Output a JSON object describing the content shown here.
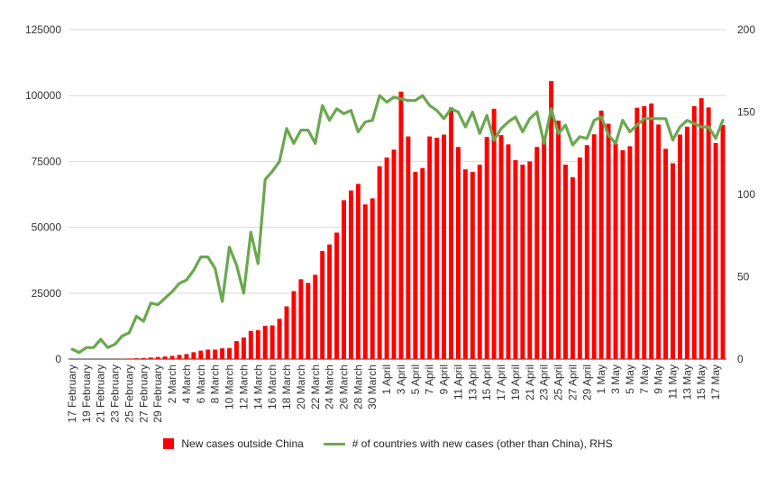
{
  "chart_data": {
    "type": "bar+line",
    "x": [
      "17 February",
      "18 February",
      "19 February",
      "20 February",
      "21 February",
      "22 February",
      "23 February",
      "24 February",
      "25 February",
      "26 February",
      "27 February",
      "28 February",
      "29 February",
      "1 March",
      "2 March",
      "3 March",
      "4 March",
      "5 March",
      "6 March",
      "7 March",
      "8 March",
      "9 March",
      "10 March",
      "11 March",
      "12 March",
      "13 March",
      "14 March",
      "15 March",
      "16 March",
      "17 March",
      "18 March",
      "19 March",
      "20 March",
      "21 March",
      "22 March",
      "23 March",
      "24 March",
      "25 March",
      "26 March",
      "27 March",
      "28 March",
      "29 March",
      "30 March",
      "31 March",
      "1 April",
      "2 April",
      "3 April",
      "4 April",
      "5 April",
      "6 April",
      "7 April",
      "8 April",
      "9 April",
      "10 April",
      "11 April",
      "12 April",
      "13 April",
      "14 April",
      "15 April",
      "16 April",
      "17 April",
      "18 April",
      "19 April",
      "20 April",
      "21 April",
      "22 April",
      "23 April",
      "24 April",
      "25 April",
      "26 April",
      "27 April",
      "28 April",
      "29 April",
      "30 April",
      "1 May",
      "2 May",
      "3 May",
      "4 May",
      "5 May",
      "6 May",
      "7 May",
      "8 May",
      "9 May",
      "10 May",
      "11 May",
      "12 May",
      "13 May",
      "14 May",
      "15 May",
      "16 May",
      "17 May",
      "18 May"
    ],
    "x_tick_labels": [
      "17 February",
      "19 February",
      "21 February",
      "23 February",
      "25 February",
      "27 February",
      "29 February",
      "2 March",
      "4 March",
      "6 March",
      "8 March",
      "10 March",
      "12 March",
      "14 March",
      "16 March",
      "18 March",
      "20 March",
      "22 March",
      "24 March",
      "26 March",
      "28 March",
      "30 March",
      "1 April",
      "3 April",
      "5 April",
      "7 April",
      "9 April",
      "11 April",
      "13 April",
      "15 April",
      "17 April",
      "19 April",
      "21 April",
      "23 April",
      "25 April",
      "27 April",
      "29 April",
      "1 May",
      "3 May",
      "5 May",
      "7 May",
      "9 May",
      "11 May",
      "13 May",
      "15 May",
      "17 May"
    ],
    "series": [
      {
        "name": "New cases outside China",
        "type": "bar",
        "axis": "left",
        "color": "#ff0000",
        "values": [
          0,
          0,
          0,
          0,
          0,
          0,
          0,
          100,
          200,
          300,
          400,
          600,
          800,
          1000,
          1200,
          1600,
          1900,
          2600,
          3200,
          3600,
          3600,
          4100,
          4200,
          6800,
          8200,
          10700,
          11000,
          12600,
          12800,
          15300,
          20000,
          25800,
          30300,
          28900,
          32000,
          41000,
          43500,
          48000,
          60300,
          64000,
          66500,
          58700,
          61000,
          73200,
          76500,
          79500,
          101500,
          84500,
          71000,
          72500,
          84500,
          84000,
          85200,
          95500,
          80500,
          72000,
          71000,
          73800,
          84300,
          95000,
          85000,
          81500,
          75500,
          73800,
          75000,
          80500,
          84300,
          105500,
          90500,
          73800,
          69000,
          76500,
          81200,
          85300,
          94300,
          89300,
          81800,
          79300,
          80800,
          95400,
          96000,
          97000,
          89000,
          79800,
          74300,
          85200,
          88200,
          96000,
          99000,
          95500,
          82000,
          88800
        ]
      },
      {
        "name": "# of countries with new cases (other than China), RHS",
        "type": "line",
        "axis": "right",
        "color": "#6aa84f",
        "values": [
          6,
          4,
          7,
          7,
          12,
          7,
          9,
          14,
          16,
          26,
          23,
          34,
          33,
          37,
          41,
          46,
          48,
          54,
          62,
          62,
          55,
          35,
          68,
          57,
          40,
          77,
          58,
          109,
          114,
          120,
          140,
          131,
          139,
          139,
          131,
          154,
          145,
          152,
          149,
          151,
          138,
          144,
          145,
          160,
          156,
          159,
          158,
          157,
          157,
          160,
          154,
          151,
          146,
          152,
          150,
          141,
          150,
          137,
          148,
          133,
          140,
          144,
          147,
          138,
          146,
          150,
          131,
          152,
          137,
          142,
          130,
          135,
          134,
          145,
          147,
          136,
          131,
          145,
          138,
          142,
          146,
          146,
          146,
          146,
          133,
          141,
          145,
          143,
          141,
          141,
          134,
          145
        ]
      }
    ],
    "y_left": {
      "ticks": [
        0,
        25000,
        50000,
        75000,
        100000,
        125000
      ],
      "tick_labels": [
        "0",
        "25000",
        "50000",
        "75000",
        "100000",
        "125000"
      ],
      "ylim": [
        0,
        125000
      ]
    },
    "y_right": {
      "ticks": [
        0,
        50,
        100,
        150,
        200
      ],
      "tick_labels": [
        "0",
        "50",
        "100",
        "150",
        "200"
      ],
      "ylim": [
        0,
        200
      ]
    },
    "grid": true,
    "legend": "bottom",
    "title": "",
    "xlabel": "",
    "ylabel": ""
  }
}
